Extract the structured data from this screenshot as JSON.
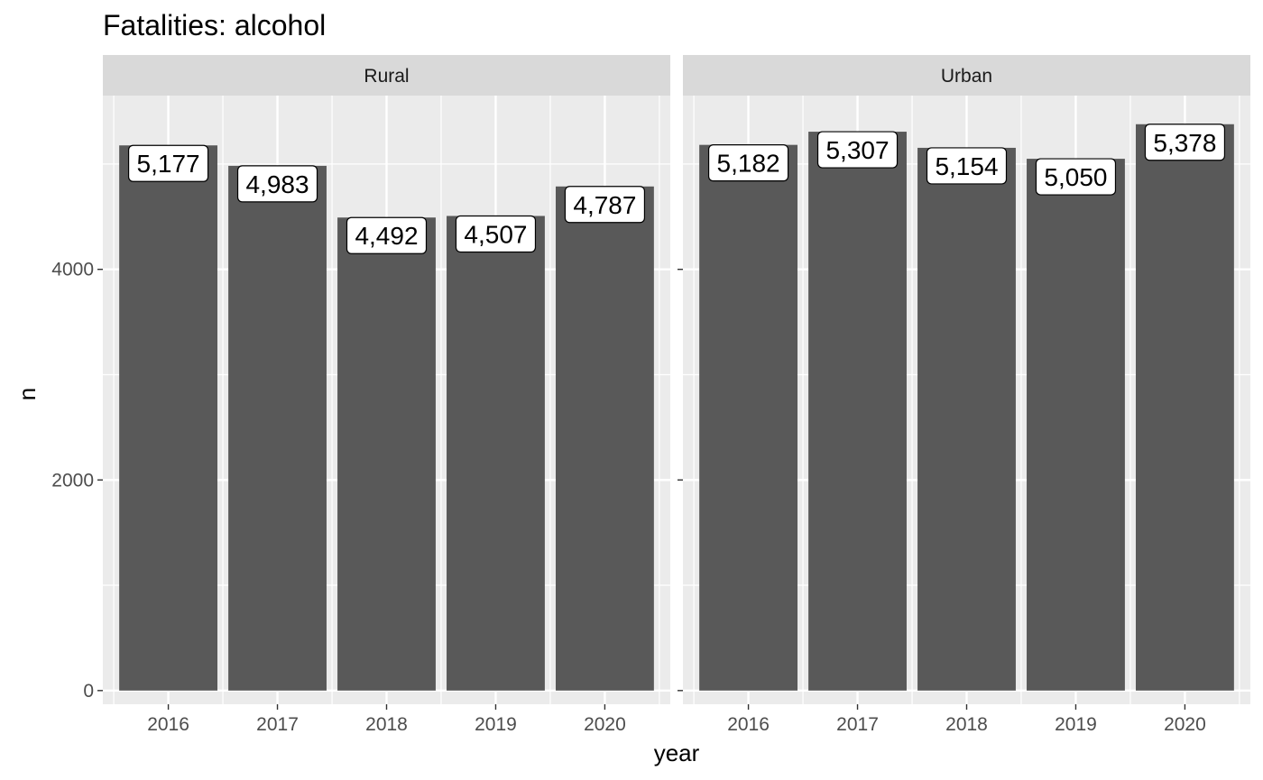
{
  "chart_data": {
    "type": "bar",
    "title": "Fatalities: alcohol",
    "xlabel": "year",
    "ylabel": "n",
    "categories": [
      "2016",
      "2017",
      "2018",
      "2019",
      "2020"
    ],
    "y_ticks": [
      0,
      2000,
      4000
    ],
    "ylim": [
      -130,
      5650
    ],
    "grid": true,
    "colors": {
      "bar": "#595959",
      "panel": "#ebebeb",
      "strip": "#d9d9d9",
      "grid": "#ffffff"
    },
    "panels": [
      {
        "name": "Rural",
        "values": [
          5177,
          4983,
          4492,
          4507,
          4787
        ],
        "labels": [
          "5,177",
          "4,983",
          "4,492",
          "4,507",
          "4,787"
        ]
      },
      {
        "name": "Urban",
        "values": [
          5182,
          5307,
          5154,
          5050,
          5378
        ],
        "labels": [
          "5,182",
          "5,307",
          "5,154",
          "5,050",
          "5,378"
        ]
      }
    ]
  }
}
